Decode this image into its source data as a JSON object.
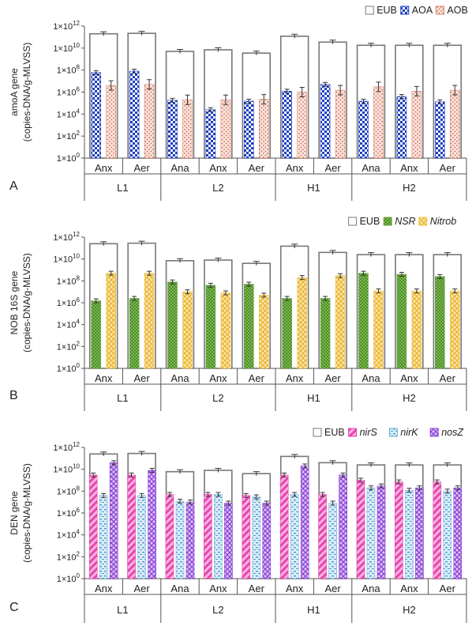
{
  "chart_data": [
    {
      "type": "bar",
      "panel_label": "A",
      "ylabel_lines": [
        "amoA gene",
        "(copies-DNA/g-MLVSS)"
      ],
      "yscale": "log",
      "yticks": [
        "1×10^0",
        "1×10^2",
        "1×10^4",
        "1×10^6",
        "1×10^8",
        "1×10^10",
        "1×10^12"
      ],
      "ylim_log10": [
        0,
        12
      ],
      "categories": [
        "Anx",
        "Aer",
        "Ana",
        "Anx",
        "Aer",
        "Anx",
        "Aer",
        "Ana",
        "Anx",
        "Aer"
      ],
      "groups": [
        {
          "name": "L1",
          "span": [
            0,
            1
          ]
        },
        {
          "name": "L2",
          "span": [
            2,
            4
          ]
        },
        {
          "name": "H1",
          "span": [
            5,
            6
          ]
        },
        {
          "name": "H2",
          "span": [
            7,
            9
          ]
        }
      ],
      "envelope": {
        "name": "EUB",
        "values": [
          200000000000.0,
          220000000000.0,
          5000000000.0,
          7000000000.0,
          3500000000.0,
          120000000000.0,
          35000000000.0,
          18000000000.0,
          18000000000.0,
          18000000000.0
        ]
      },
      "series": [
        {
          "name": "AOA",
          "italic": false,
          "pattern": "dots",
          "color": "#1f3fbf",
          "values": [
            60000000.0,
            80000000.0,
            180000.0,
            25000.0,
            150000.0,
            1200000.0,
            5000000.0,
            150000.0,
            400000.0,
            130000.0
          ]
        },
        {
          "name": "AOB",
          "italic": false,
          "pattern": "pinkdots",
          "color": "#d9826e",
          "values": [
            4000000.0,
            5000000.0,
            200000.0,
            200000.0,
            220000.0,
            1000000.0,
            1500000.0,
            3000000.0,
            1200000.0,
            1500000.0
          ]
        }
      ]
    },
    {
      "type": "bar",
      "panel_label": "B",
      "ylabel_lines": [
        "NOB 16S gene",
        "(copies-DNA/g-MLVSS)"
      ],
      "yscale": "log",
      "yticks": [
        "1×10^0",
        "1×10^2",
        "1×10^4",
        "1×10^6",
        "1×10^8",
        "1×10^10",
        "1×10^12"
      ],
      "ylim_log10": [
        0,
        12
      ],
      "categories": [
        "Anx",
        "Aer",
        "Ana",
        "Anx",
        "Aer",
        "Anx",
        "Aer",
        "Ana",
        "Anx",
        "Aer"
      ],
      "groups": [
        {
          "name": "L1",
          "span": [
            0,
            1
          ]
        },
        {
          "name": "L2",
          "span": [
            2,
            4
          ]
        },
        {
          "name": "H1",
          "span": [
            5,
            6
          ]
        },
        {
          "name": "H2",
          "span": [
            7,
            9
          ]
        }
      ],
      "envelope": {
        "name": "EUB",
        "values": [
          250000000000.0,
          280000000000.0,
          7000000000.0,
          8000000000.0,
          4000000000.0,
          150000000000.0,
          40000000000.0,
          25000000000.0,
          25000000000.0,
          25000000000.0
        ]
      },
      "series": [
        {
          "name": "NSR",
          "italic": true,
          "pattern": "green",
          "color": "#6aa842",
          "values": [
            1500000.0,
            2500000.0,
            80000000.0,
            40000000.0,
            50000000.0,
            2500000.0,
            2500000.0,
            500000000.0,
            400000000.0,
            250000000.0
          ]
        },
        {
          "name": "Nitrob",
          "italic": true,
          "pattern": "yellow",
          "color": "#f2c14a",
          "values": [
            500000000.0,
            500000000.0,
            10000000.0,
            8000000.0,
            5000000.0,
            200000000.0,
            300000000.0,
            12000000.0,
            12000000.0,
            12000000.0
          ]
        }
      ]
    },
    {
      "type": "bar",
      "panel_label": "C",
      "ylabel_lines": [
        "DEN gene",
        "(copies-DNA/g-MLVSS)"
      ],
      "yscale": "log",
      "yticks": [
        "1×10^0",
        "1×10^2",
        "1×10^4",
        "1×10^6",
        "1×10^8",
        "1×10^10",
        "1×10^12"
      ],
      "ylim_log10": [
        0,
        12
      ],
      "categories": [
        "Anx",
        "Aer",
        "Ana",
        "Anx",
        "Aer",
        "Anx",
        "Aer",
        "Ana",
        "Anx",
        "Aer"
      ],
      "groups": [
        {
          "name": "L1",
          "span": [
            0,
            1
          ]
        },
        {
          "name": "L2",
          "span": [
            2,
            4
          ]
        },
        {
          "name": "H1",
          "span": [
            5,
            6
          ]
        },
        {
          "name": "H2",
          "span": [
            7,
            9
          ]
        }
      ],
      "envelope": {
        "name": "EUB",
        "values": [
          250000000000.0,
          280000000000.0,
          6000000000.0,
          8000000000.0,
          4000000000.0,
          150000000000.0,
          40000000000.0,
          25000000000.0,
          25000000000.0,
          25000000000.0
        ]
      },
      "series": [
        {
          "name": "nirS",
          "italic": true,
          "pattern": "pinkstripe",
          "color": "#e845b0",
          "values": [
            3000000000.0,
            3000000000.0,
            50000000.0,
            50000000.0,
            40000000.0,
            3000000000.0,
            50000000.0,
            1000000000.0,
            700000000.0,
            700000000.0
          ]
        },
        {
          "name": "nirK",
          "italic": true,
          "pattern": "bluedash",
          "color": "#6fb0d8",
          "values": [
            40000000.0,
            40000000.0,
            12000000.0,
            50000000.0,
            30000000.0,
            50000000.0,
            8000000.0,
            200000000.0,
            120000000.0,
            100000000.0
          ]
        },
        {
          "name": "nosZ",
          "italic": true,
          "pattern": "purplecheck",
          "color": "#8a3fd6",
          "values": [
            40000000000.0,
            8000000000.0,
            10000000.0,
            8000000.0,
            8000000.0,
            20000000000.0,
            3000000000.0,
            300000000.0,
            200000000.0,
            200000000.0
          ]
        }
      ]
    }
  ]
}
